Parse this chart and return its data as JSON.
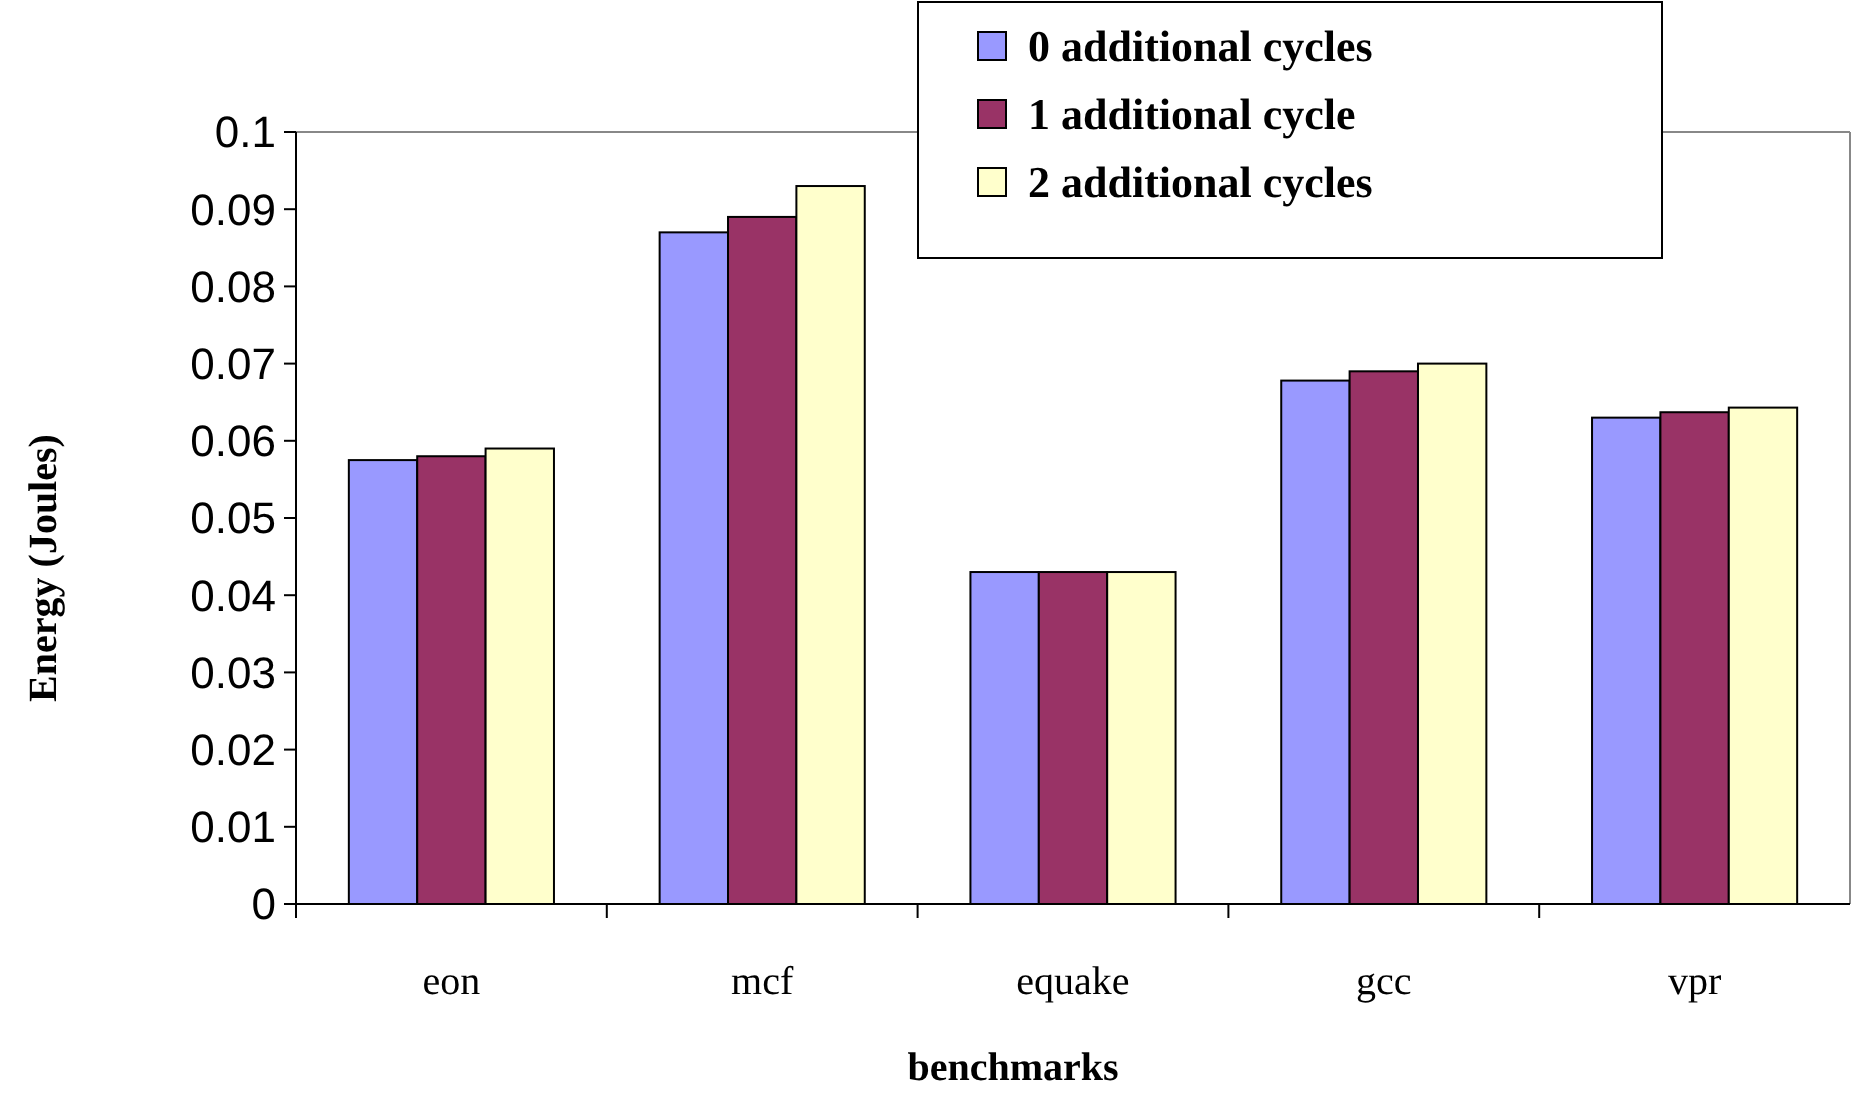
{
  "chart_data": {
    "type": "bar",
    "xlabel": "benchmarks",
    "ylabel": "Energy (Joules)",
    "categories": [
      "eon",
      "mcf",
      "equake",
      "gcc",
      "vpr"
    ],
    "series": [
      {
        "name": "0 additional cycles",
        "color": "#9999ff",
        "values": [
          0.0575,
          0.087,
          0.043,
          0.0678,
          0.063
        ]
      },
      {
        "name": "1 additional cycle",
        "color": "#993366",
        "values": [
          0.058,
          0.089,
          0.043,
          0.069,
          0.0637
        ]
      },
      {
        "name": "2 additional cycles",
        "color": "#ffffcc",
        "values": [
          0.059,
          0.093,
          0.043,
          0.07,
          0.0643
        ]
      }
    ],
    "ylim": [
      0,
      0.1
    ],
    "yticks": [
      0,
      0.01,
      0.02,
      0.03,
      0.04,
      0.05,
      0.06,
      0.07,
      0.08,
      0.09,
      0.1
    ],
    "grid": false,
    "legend": "top right"
  }
}
